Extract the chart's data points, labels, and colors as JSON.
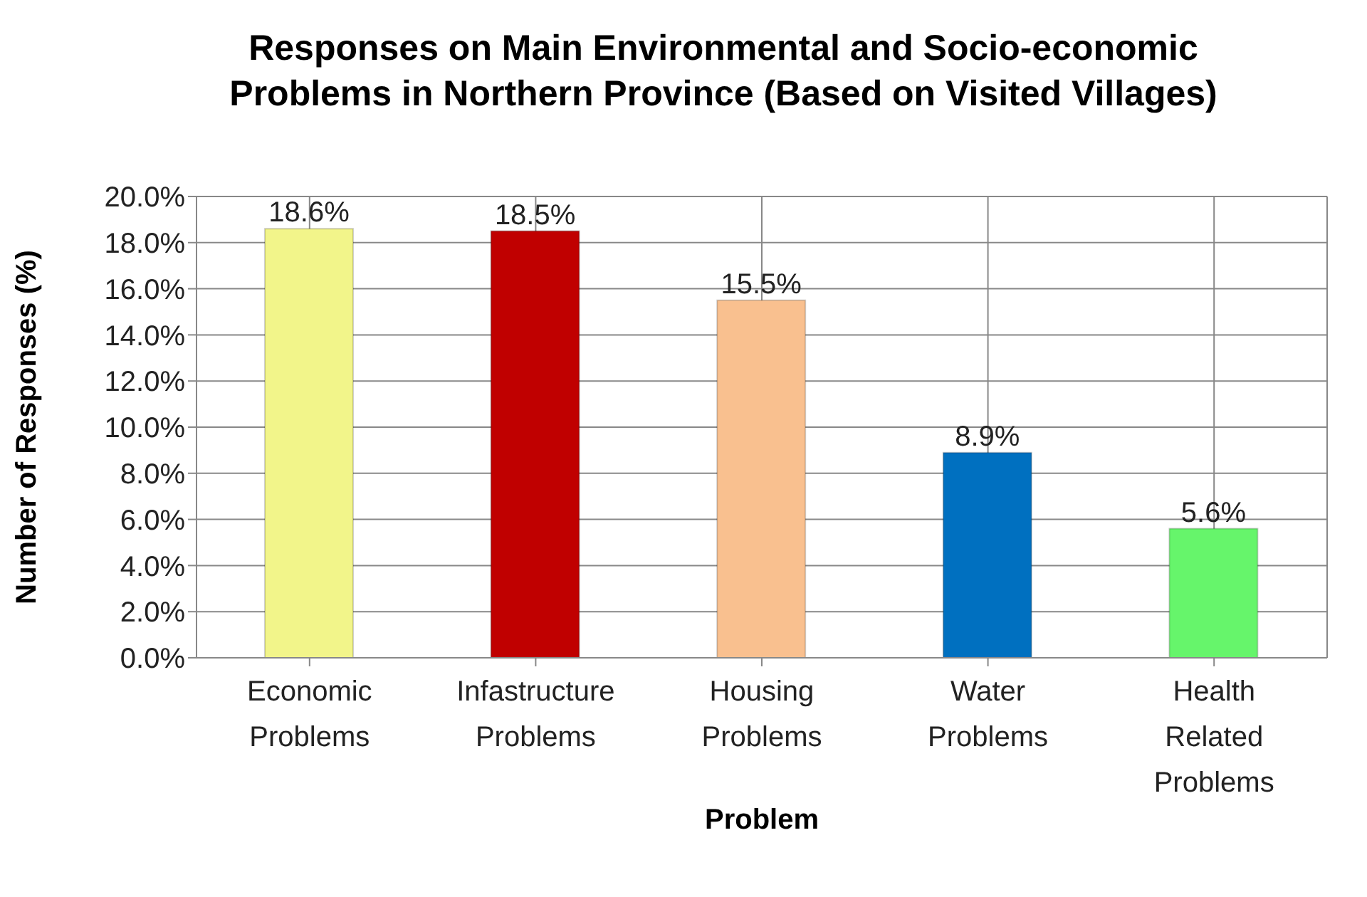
{
  "chart_data": {
    "type": "bar",
    "title": "Responses on Main Environmental and Socio-economic Problems in Northern Province (Based on Visited Villages)",
    "xlabel": "Problem",
    "ylabel": "Number of Responses (%)",
    "categories": [
      "Economic Problems",
      "Infastructure Problems",
      "Housing Problems",
      "Water Problems",
      "Health Related Problems"
    ],
    "values": [
      18.6,
      18.5,
      15.5,
      8.9,
      5.6
    ],
    "colors": [
      "#f2f58a",
      "#c00000",
      "#f9c08f",
      "#0070c0",
      "#66f56b"
    ],
    "value_labels": [
      "18.6%",
      "18.5%",
      "15.5%",
      "8.9%",
      "5.6%"
    ],
    "ylim": [
      0,
      20
    ],
    "yticks": [
      {
        "value": 0,
        "label": "0.0%"
      },
      {
        "value": 2,
        "label": "2.0%"
      },
      {
        "value": 4,
        "label": "4.0%"
      },
      {
        "value": 6,
        "label": "6.0%"
      },
      {
        "value": 8,
        "label": "8.0%"
      },
      {
        "value": 10,
        "label": "10.0%"
      },
      {
        "value": 12,
        "label": "12.0%"
      },
      {
        "value": 14,
        "label": "14.0%"
      },
      {
        "value": 16,
        "label": "16.0%"
      },
      {
        "value": 18,
        "label": "18.0%"
      },
      {
        "value": 20,
        "label": "20.0%"
      }
    ],
    "grid": true
  }
}
